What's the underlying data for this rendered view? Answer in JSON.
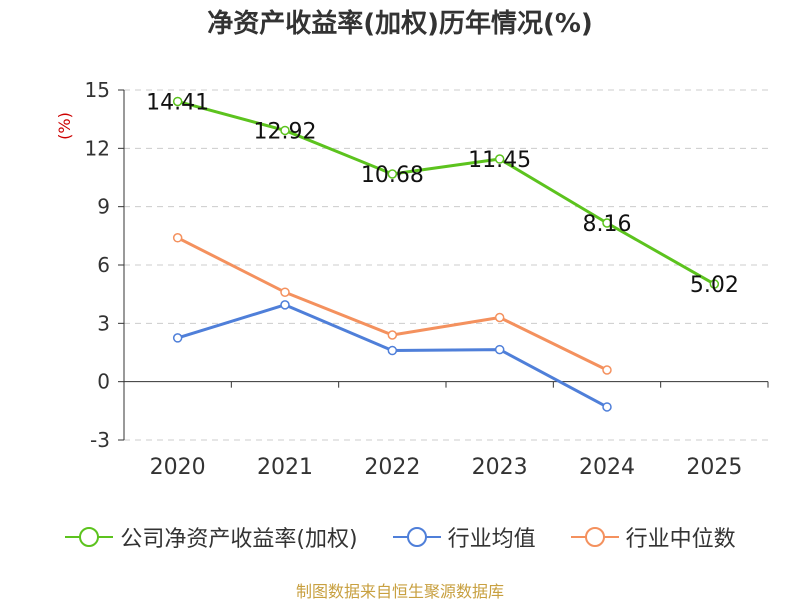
{
  "chart_data": {
    "type": "line",
    "title": "净资产收益率(加权)历年情况(%)",
    "ylabel": "(%)",
    "xlabel": "",
    "categories": [
      "2020",
      "2021",
      "2022",
      "2023",
      "2024",
      "2025"
    ],
    "ylim": [
      -3,
      15
    ],
    "yticks": [
      -3,
      0,
      3,
      6,
      9,
      12,
      15
    ],
    "grid": true,
    "legend_position": "bottom",
    "series": [
      {
        "name": "公司净资产收益率(加权)",
        "color": "#5cc31e",
        "values": [
          14.41,
          12.92,
          10.68,
          11.45,
          8.16,
          5.02
        ],
        "labels": [
          "14.41",
          "12.92",
          "10.68",
          "11.45",
          "8.16",
          "5.02"
        ]
      },
      {
        "name": "行业均值",
        "color": "#4f7fd9",
        "values": [
          2.25,
          3.95,
          1.6,
          1.65,
          -1.3,
          null
        ]
      },
      {
        "name": "行业中位数",
        "color": "#f4915e",
        "values": [
          7.4,
          4.6,
          2.4,
          3.3,
          0.6,
          null
        ]
      }
    ]
  },
  "source": "制图数据来自恒生聚源数据库"
}
